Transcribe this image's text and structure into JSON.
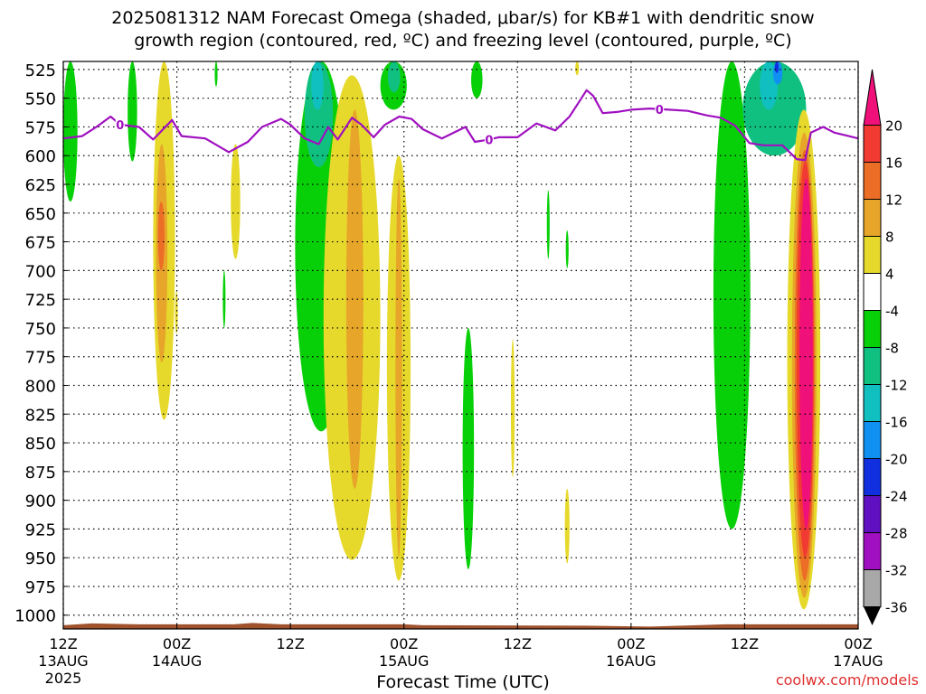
{
  "title_line1": "2025081312 NAM Forecast Omega (shaded, μbar/s) for KB#1 with dendritic snow",
  "title_line2": "growth region (contoured, red, ºC) and freezing level (contoured, purple, ºC)",
  "xlabel": "Forecast Time (UTC)",
  "watermark": "coolwx.com/models",
  "chart_data": {
    "type": "heatmap",
    "x_unit": "forecast hours from 2025-08-13 12Z",
    "xlim": [
      0,
      84
    ],
    "ylim": [
      1012,
      518
    ],
    "yticks": [
      525,
      550,
      575,
      600,
      625,
      650,
      675,
      700,
      725,
      750,
      775,
      800,
      825,
      850,
      875,
      900,
      925,
      950,
      975,
      1000
    ],
    "xticks": [
      {
        "hour": 0,
        "lines": [
          "12Z",
          "13AUG",
          "2025"
        ]
      },
      {
        "hour": 12,
        "lines": [
          "00Z",
          "14AUG"
        ]
      },
      {
        "hour": 24,
        "lines": [
          "12Z"
        ]
      },
      {
        "hour": 36,
        "lines": [
          "00Z",
          "15AUG"
        ]
      },
      {
        "hour": 48,
        "lines": [
          "12Z"
        ]
      },
      {
        "hour": 60,
        "lines": [
          "00Z",
          "16AUG"
        ]
      },
      {
        "hour": 72,
        "lines": [
          "12Z"
        ]
      },
      {
        "hour": 84,
        "lines": [
          "00Z",
          "17AUG"
        ]
      }
    ],
    "grid": true,
    "colorbar": {
      "labels": [
        "20",
        "16",
        "12",
        "8",
        "4",
        "-4",
        "-8",
        "-12",
        "-16",
        "-20",
        "-24",
        "-28",
        "-32",
        "-36"
      ],
      "bins": [
        {
          "color": "#f0107a"
        },
        {
          "color": "#f03a32"
        },
        {
          "color": "#ec6d25"
        },
        {
          "color": "#e7a52a"
        },
        {
          "color": "#e6d92c"
        },
        {
          "color": "#ffffff"
        },
        {
          "color": "#08d008"
        },
        {
          "color": "#10c080"
        },
        {
          "color": "#10c0c0"
        },
        {
          "color": "#1090f0"
        },
        {
          "color": "#1030e0"
        },
        {
          "color": "#6010c0"
        },
        {
          "color": "#a010c0"
        },
        {
          "color": "#a8a8a8"
        }
      ]
    },
    "omega_regions": [
      {
        "level": "-8",
        "color": "#08d008",
        "hour": [
          0.0,
          1.5
        ],
        "p": [
          518,
          640
        ]
      },
      {
        "level": "-8",
        "color": "#08d008",
        "hour": [
          6.8,
          7.8
        ],
        "p": [
          518,
          605
        ]
      },
      {
        "level": "-8",
        "color": "#08d008",
        "hour": [
          16.0,
          16.3
        ],
        "p": [
          518,
          540
        ]
      },
      {
        "level": "4",
        "color": "#e6d92c",
        "hour": [
          9.5,
          11.8
        ],
        "p": [
          518,
          830
        ]
      },
      {
        "level": "8",
        "color": "#e7a52a",
        "hour": [
          9.8,
          11.0
        ],
        "p": [
          590,
          780
        ]
      },
      {
        "level": "12",
        "color": "#ec6d25",
        "hour": [
          10.0,
          10.7
        ],
        "p": [
          640,
          700
        ]
      },
      {
        "level": "4",
        "color": "#e6d92c",
        "hour": [
          11.8,
          12.1
        ],
        "p": [
          718,
          755
        ]
      },
      {
        "level": "-8",
        "color": "#08d008",
        "hour": [
          16.9,
          17.1
        ],
        "p": [
          700,
          750
        ]
      },
      {
        "level": "4",
        "color": "#e6d92c",
        "hour": [
          17.7,
          18.7
        ],
        "p": [
          590,
          690
        ]
      },
      {
        "level": "-8",
        "color": "#08d008",
        "hour": [
          24.5,
          30.0
        ],
        "p": [
          518,
          840
        ]
      },
      {
        "level": "-12",
        "color": "#10c080",
        "hour": [
          25.5,
          28.5
        ],
        "p": [
          518,
          610
        ]
      },
      {
        "level": "-16",
        "color": "#10c0c0",
        "hour": [
          26.2,
          27.5
        ],
        "p": [
          518,
          560
        ]
      },
      {
        "level": "4",
        "color": "#e6d92c",
        "hour": [
          27.5,
          33.5
        ],
        "p": [
          530,
          952
        ]
      },
      {
        "level": "8",
        "color": "#e7a52a",
        "hour": [
          29.9,
          31.7
        ],
        "p": [
          560,
          890
        ]
      },
      {
        "level": "-8",
        "color": "#08d008",
        "hour": [
          33.5,
          36.3
        ],
        "p": [
          518,
          560
        ]
      },
      {
        "level": "-12",
        "color": "#10c080",
        "hour": [
          34.3,
          35.6
        ],
        "p": [
          518,
          545
        ]
      },
      {
        "level": "4",
        "color": "#e6d92c",
        "hour": [
          34.2,
          36.7
        ],
        "p": [
          600,
          970
        ]
      },
      {
        "level": "8",
        "color": "#e7a52a",
        "hour": [
          35.1,
          35.8
        ],
        "p": [
          620,
          950
        ]
      },
      {
        "level": "-8",
        "color": "#08d008",
        "hour": [
          43.1,
          44.3
        ],
        "p": [
          518,
          550
        ]
      },
      {
        "level": "-8",
        "color": "#08d008",
        "hour": [
          42.2,
          43.4
        ],
        "p": [
          750,
          960
        ]
      },
      {
        "level": "4",
        "color": "#e6d92c",
        "hour": [
          47.3,
          47.7
        ],
        "p": [
          760,
          880
        ]
      },
      {
        "level": "-8",
        "color": "#08d008",
        "hour": [
          51.1,
          51.4
        ],
        "p": [
          630,
          690
        ]
      },
      {
        "level": "-8",
        "color": "#08d008",
        "hour": [
          53.1,
          53.4
        ],
        "p": [
          665,
          698
        ]
      },
      {
        "level": "4",
        "color": "#e6d92c",
        "hour": [
          53.0,
          53.5
        ],
        "p": [
          890,
          955
        ]
      },
      {
        "level": "4",
        "color": "#e6d92c",
        "hour": [
          54.1,
          54.5
        ],
        "p": [
          518,
          530
        ]
      },
      {
        "level": "-8",
        "color": "#08d008",
        "hour": [
          68.7,
          72.6
        ],
        "p": [
          518,
          925
        ]
      },
      {
        "level": "-12",
        "color": "#10c080",
        "hour": [
          71.8,
          78.5
        ],
        "p": [
          518,
          600
        ]
      },
      {
        "level": "-16",
        "color": "#10c0c0",
        "hour": [
          73.6,
          75.5
        ],
        "p": [
          518,
          560
        ]
      },
      {
        "level": "-20",
        "color": "#1090f0",
        "hour": [
          75.0,
          76.0
        ],
        "p": [
          518,
          538
        ]
      },
      {
        "level": "-24",
        "color": "#1030e0",
        "hour": [
          75.2,
          75.6
        ],
        "p": [
          518,
          528
        ]
      },
      {
        "level": "4",
        "color": "#e6d92c",
        "hour": [
          76.5,
          80.0
        ],
        "p": [
          560,
          995
        ]
      },
      {
        "level": "8",
        "color": "#e7a52a",
        "hour": [
          77.0,
          79.6
        ],
        "p": [
          580,
          985
        ]
      },
      {
        "level": "12",
        "color": "#ec6d25",
        "hour": [
          77.3,
          79.4
        ],
        "p": [
          595,
          970
        ]
      },
      {
        "level": "16",
        "color": "#f03a32",
        "hour": [
          77.5,
          79.3
        ],
        "p": [
          605,
          950
        ]
      },
      {
        "level": "20",
        "color": "#f0107a",
        "hour": [
          77.8,
          79.2
        ],
        "p": [
          620,
          925
        ]
      }
    ],
    "freezing_level": {
      "label": "0",
      "color": "#a010c0",
      "points": [
        [
          0,
          585
        ],
        [
          2.0,
          583
        ],
        [
          3.5,
          575
        ],
        [
          5.0,
          566
        ],
        [
          6.0,
          573
        ],
        [
          8.0,
          575
        ],
        [
          9.5,
          586
        ],
        [
          11.5,
          569
        ],
        [
          12.5,
          583
        ],
        [
          15.0,
          585
        ],
        [
          17.5,
          597
        ],
        [
          19.5,
          588
        ],
        [
          21.0,
          575
        ],
        [
          23.0,
          568
        ],
        [
          24.0,
          573
        ],
        [
          25.5,
          585
        ],
        [
          27.0,
          590
        ],
        [
          28.0,
          575
        ],
        [
          29.0,
          586
        ],
        [
          30.5,
          567
        ],
        [
          31.5,
          573
        ],
        [
          32.8,
          584
        ],
        [
          34.0,
          573
        ],
        [
          35.5,
          566
        ],
        [
          36.8,
          568
        ],
        [
          38.0,
          577
        ],
        [
          40.0,
          585
        ],
        [
          42.5,
          575
        ],
        [
          43.5,
          588
        ],
        [
          45.0,
          586
        ],
        [
          46.0,
          584
        ],
        [
          48.0,
          584
        ],
        [
          50.0,
          572
        ],
        [
          52.0,
          578
        ],
        [
          53.5,
          566
        ],
        [
          55.3,
          543
        ],
        [
          56.0,
          548
        ],
        [
          57.0,
          563
        ],
        [
          58.5,
          562
        ],
        [
          60.0,
          560
        ],
        [
          62.0,
          559
        ],
        [
          64.0,
          560
        ],
        [
          66.0,
          561
        ],
        [
          68.0,
          565
        ],
        [
          69.5,
          567
        ],
        [
          71.0,
          574
        ],
        [
          72.5,
          589
        ],
        [
          74.0,
          591
        ],
        [
          76.0,
          591
        ],
        [
          77.5,
          603
        ],
        [
          78.4,
          604
        ],
        [
          79.0,
          580
        ],
        [
          80.3,
          575
        ],
        [
          81.5,
          580
        ],
        [
          83.0,
          583
        ],
        [
          84.0,
          585
        ]
      ],
      "labels_at_hours": [
        6.0,
        45.0,
        63.0
      ]
    },
    "terrain": {
      "color": "#a0522d",
      "p_top_mean": 1008
    }
  }
}
